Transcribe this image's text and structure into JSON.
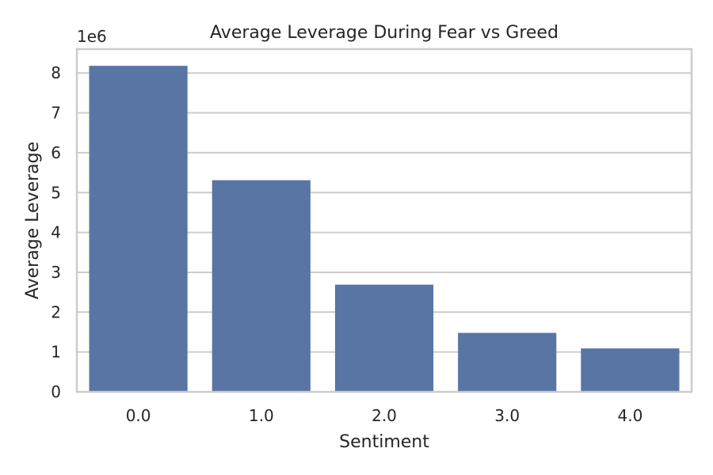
{
  "chart_data": {
    "type": "bar",
    "title": "Average Leverage During Fear vs Greed",
    "xlabel": "Sentiment",
    "ylabel": "Average Leverage",
    "y_offset_label": "1e6",
    "categories": [
      "0.0",
      "1.0",
      "2.0",
      "3.0",
      "4.0"
    ],
    "values": [
      8180000,
      5310000,
      2690000,
      1480000,
      1090000
    ],
    "ylim": [
      0,
      8600000
    ],
    "y_ticks": [
      0,
      1000000,
      2000000,
      3000000,
      4000000,
      5000000,
      6000000,
      7000000,
      8000000
    ],
    "y_tick_labels": [
      "0",
      "1",
      "2",
      "3",
      "4",
      "5",
      "6",
      "7",
      "8"
    ],
    "grid": true,
    "bar_color": "#5875a4"
  }
}
